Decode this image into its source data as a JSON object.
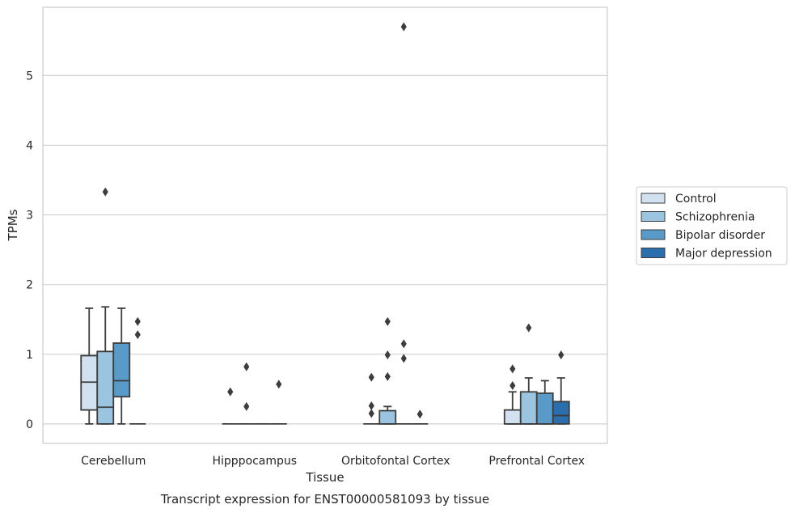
{
  "caption": "Transcript expression for ENST00000581093 by tissue",
  "chart_data": {
    "type": "box",
    "xlabel": "Tissue",
    "ylabel": "TPMs",
    "ylim": [
      -0.28,
      5.98
    ],
    "yticks": [
      "0",
      "1",
      "2",
      "3",
      "4",
      "5"
    ],
    "grid": true,
    "legend_position": "right",
    "categories": [
      "Cerebellum",
      "Hipppocampus",
      "Orbitofontal Cortex",
      "Prefrontal Cortex"
    ],
    "series": [
      {
        "name": "Control",
        "color": "#d1e1f0",
        "boxes": [
          {
            "min": 0,
            "q1": 0.2,
            "median": 0.6,
            "q3": 0.98,
            "max": 1.66,
            "outliers": []
          },
          {
            "min": 0,
            "q1": 0,
            "median": 0,
            "q3": 0,
            "max": 0,
            "outliers": [
              0.46
            ]
          },
          {
            "min": 0,
            "q1": 0,
            "median": 0,
            "q3": 0,
            "max": 0,
            "outliers": [
              0.67,
              0.26,
              0.15
            ]
          },
          {
            "min": 0,
            "q1": 0,
            "median": 0,
            "q3": 0.2,
            "max": 0.46,
            "outliers": [
              0.79,
              0.55
            ]
          }
        ]
      },
      {
        "name": "Schizophrenia",
        "color": "#9ac4df",
        "boxes": [
          {
            "min": 0,
            "q1": 0,
            "median": 0.24,
            "q3": 1.04,
            "max": 1.68,
            "outliers": [
              3.33
            ]
          },
          {
            "min": 0,
            "q1": 0,
            "median": 0,
            "q3": 0,
            "max": 0,
            "outliers": [
              0.82,
              0.25
            ]
          },
          {
            "min": 0,
            "q1": 0,
            "median": 0,
            "q3": 0.19,
            "max": 0.25,
            "outliers": [
              1.47,
              0.99,
              0.68
            ]
          },
          {
            "min": 0,
            "q1": 0,
            "median": 0,
            "q3": 0.46,
            "max": 0.66,
            "outliers": [
              1.38
            ]
          }
        ]
      },
      {
        "name": "Bipolar disorder",
        "color": "#5a9ac8",
        "boxes": [
          {
            "min": 0,
            "q1": 0.39,
            "median": 0.62,
            "q3": 1.16,
            "max": 1.66,
            "outliers": []
          },
          {
            "min": 0,
            "q1": 0,
            "median": 0,
            "q3": 0,
            "max": 0,
            "outliers": []
          },
          {
            "min": 0,
            "q1": 0,
            "median": 0,
            "q3": 0,
            "max": 0,
            "outliers": [
              5.7,
              1.15,
              0.94
            ]
          },
          {
            "min": 0,
            "q1": 0,
            "median": 0,
            "q3": 0.44,
            "max": 0.62,
            "outliers": []
          }
        ]
      },
      {
        "name": "Major depression",
        "color": "#2a6ead",
        "boxes": [
          {
            "min": 0,
            "q1": 0,
            "median": 0,
            "q3": 0,
            "max": 0,
            "outliers": [
              1.47,
              1.28
            ]
          },
          {
            "min": 0,
            "q1": 0,
            "median": 0,
            "q3": 0,
            "max": 0,
            "outliers": [
              0.57
            ]
          },
          {
            "min": 0,
            "q1": 0,
            "median": 0,
            "q3": 0,
            "max": 0,
            "outliers": [
              0.14
            ]
          },
          {
            "min": 0,
            "q1": 0,
            "median": 0.12,
            "q3": 0.32,
            "max": 0.66,
            "outliers": [
              0.99
            ]
          }
        ]
      }
    ]
  }
}
